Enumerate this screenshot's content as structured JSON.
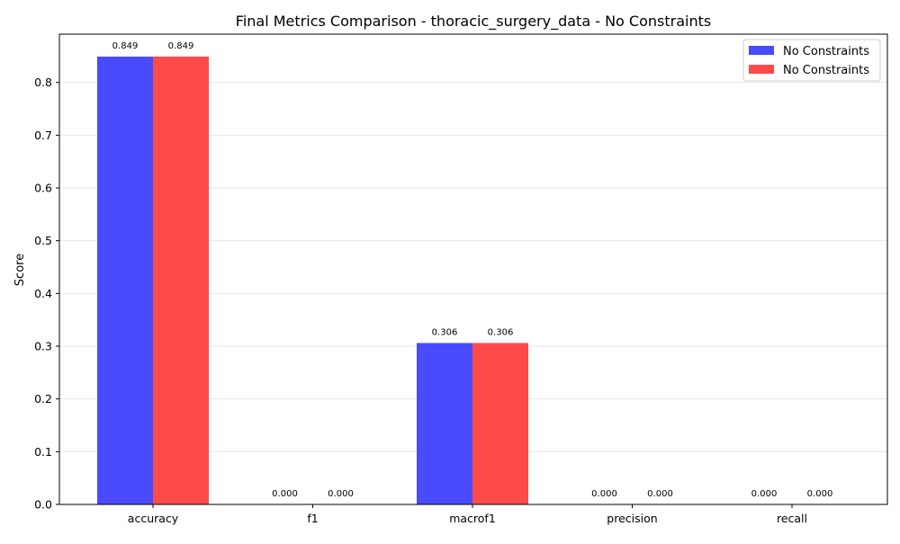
{
  "chart_data": {
    "type": "bar",
    "title": "Final Metrics Comparison - thoracic_surgery_data - No Constraints",
    "xlabel": "",
    "ylabel": "Score",
    "categories": [
      "accuracy",
      "f1",
      "macrof1",
      "precision",
      "recall"
    ],
    "series": [
      {
        "name": "No Constraints",
        "color": "#4a4aff",
        "values": [
          0.849,
          0.0,
          0.306,
          0.0,
          0.0
        ],
        "labels": [
          "0.849",
          "0.000",
          "0.306",
          "0.000",
          "0.000"
        ]
      },
      {
        "name": "No Constraints",
        "color": "#ff4a4a",
        "values": [
          0.849,
          0.0,
          0.306,
          0.0,
          0.0
        ],
        "labels": [
          "0.849",
          "0.000",
          "0.306",
          "0.000",
          "0.000"
        ]
      }
    ],
    "ylim": [
      0,
      0.8915
    ],
    "yticks": [
      "0.0",
      "0.1",
      "0.2",
      "0.3",
      "0.4",
      "0.5",
      "0.6",
      "0.7",
      "0.8"
    ],
    "grid": "horizontal",
    "legend_position": "top-right"
  }
}
